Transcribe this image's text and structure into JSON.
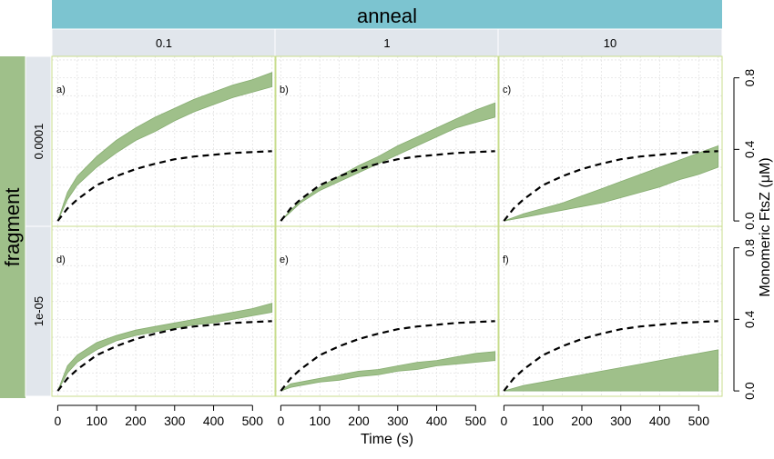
{
  "chart_data": {
    "type": "area",
    "title": "",
    "col_facet_label": "anneal",
    "row_facet_label": "fragment",
    "columns": [
      "0.1",
      "1",
      "10"
    ],
    "rows": [
      "0.0001",
      "1e-05"
    ],
    "xlabel": "Time (s)",
    "ylabel": "Monomeric FtsZ (μM)",
    "xlim": [
      -15,
      560
    ],
    "ylim": [
      -0.03,
      0.92
    ],
    "x_ticks": [
      "0",
      "100",
      "200",
      "300",
      "400",
      "500"
    ],
    "y_ticks": [
      "0.0",
      "0.4",
      "0.8"
    ],
    "grid": true,
    "colors": {
      "strip_col": "#7cc4d0",
      "strip_sub": "#e1e6ec",
      "strip_row": "#9fc08a",
      "band": "#9fc08a",
      "band_edge": "#86ad70",
      "panel_border": "#c8dc8c"
    },
    "reference_line": {
      "style": "dashed",
      "color": "#000000",
      "x": [
        0,
        25,
        50,
        100,
        150,
        200,
        250,
        300,
        350,
        400,
        450,
        500,
        550
      ],
      "y": [
        0.0,
        0.07,
        0.12,
        0.2,
        0.25,
        0.29,
        0.32,
        0.345,
        0.36,
        0.37,
        0.38,
        0.385,
        0.39
      ]
    },
    "panels": [
      {
        "label": "a)",
        "row": 0,
        "col": 0,
        "x": [
          0,
          25,
          50,
          100,
          150,
          200,
          250,
          300,
          350,
          400,
          450,
          500,
          550
        ],
        "lower": [
          0.0,
          0.12,
          0.2,
          0.3,
          0.38,
          0.45,
          0.5,
          0.56,
          0.61,
          0.65,
          0.69,
          0.72,
          0.75
        ],
        "upper": [
          0.0,
          0.16,
          0.25,
          0.36,
          0.45,
          0.52,
          0.58,
          0.63,
          0.68,
          0.72,
          0.76,
          0.79,
          0.83
        ]
      },
      {
        "label": "b)",
        "row": 0,
        "col": 1,
        "x": [
          0,
          25,
          50,
          100,
          150,
          200,
          250,
          300,
          350,
          400,
          450,
          500,
          550
        ],
        "lower": [
          0.0,
          0.05,
          0.1,
          0.17,
          0.22,
          0.27,
          0.32,
          0.37,
          0.42,
          0.47,
          0.52,
          0.55,
          0.58
        ],
        "upper": [
          0.0,
          0.06,
          0.11,
          0.19,
          0.25,
          0.31,
          0.36,
          0.42,
          0.47,
          0.52,
          0.57,
          0.62,
          0.66
        ]
      },
      {
        "label": "c)",
        "row": 0,
        "col": 2,
        "x": [
          0,
          50,
          100,
          150,
          200,
          250,
          300,
          350,
          400,
          450,
          500,
          550
        ],
        "lower": [
          0.0,
          0.02,
          0.04,
          0.06,
          0.08,
          0.1,
          0.13,
          0.16,
          0.19,
          0.23,
          0.26,
          0.3
        ],
        "upper": [
          0.0,
          0.04,
          0.07,
          0.1,
          0.14,
          0.18,
          0.22,
          0.26,
          0.3,
          0.34,
          0.38,
          0.42
        ]
      },
      {
        "label": "d)",
        "row": 1,
        "col": 0,
        "x": [
          0,
          25,
          50,
          100,
          150,
          200,
          250,
          300,
          350,
          400,
          450,
          500,
          550
        ],
        "lower": [
          0.0,
          0.1,
          0.16,
          0.23,
          0.28,
          0.31,
          0.33,
          0.35,
          0.37,
          0.38,
          0.4,
          0.42,
          0.44
        ],
        "upper": [
          0.0,
          0.14,
          0.2,
          0.27,
          0.31,
          0.34,
          0.36,
          0.38,
          0.4,
          0.42,
          0.44,
          0.46,
          0.49
        ]
      },
      {
        "label": "e)",
        "row": 1,
        "col": 1,
        "x": [
          0,
          25,
          50,
          100,
          150,
          200,
          250,
          300,
          350,
          400,
          450,
          500,
          550
        ],
        "lower": [
          0.0,
          0.02,
          0.03,
          0.05,
          0.06,
          0.08,
          0.09,
          0.11,
          0.12,
          0.14,
          0.15,
          0.16,
          0.17
        ],
        "upper": [
          0.0,
          0.04,
          0.05,
          0.07,
          0.09,
          0.11,
          0.12,
          0.14,
          0.16,
          0.17,
          0.19,
          0.21,
          0.22
        ]
      },
      {
        "label": "f)",
        "row": 1,
        "col": 2,
        "x": [
          0,
          50,
          100,
          150,
          200,
          250,
          300,
          350,
          400,
          450,
          500,
          550
        ],
        "lower": [
          0.0,
          0.0,
          0.0,
          0.0,
          0.0,
          0.0,
          0.0,
          0.0,
          0.0,
          0.0,
          0.0,
          0.0
        ],
        "upper": [
          0.0,
          0.03,
          0.05,
          0.07,
          0.09,
          0.11,
          0.13,
          0.15,
          0.17,
          0.19,
          0.21,
          0.23
        ]
      }
    ]
  }
}
